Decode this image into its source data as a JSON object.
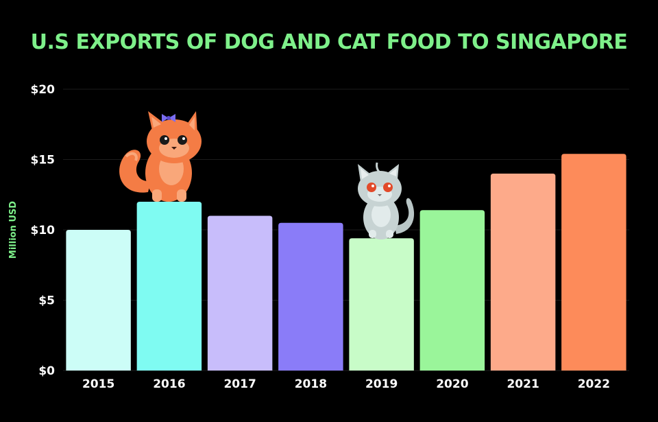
{
  "chart_data": {
    "type": "bar",
    "title": "U.S EXPORTS OF DOG AND CAT FOOD TO SINGAPORE",
    "ylabel": "Million USD",
    "xlabel": "",
    "categories": [
      "2015",
      "2016",
      "2017",
      "2018",
      "2019",
      "2020",
      "2021",
      "2022"
    ],
    "values": [
      10.0,
      12.0,
      11.0,
      10.5,
      9.4,
      11.4,
      14.0,
      15.4
    ],
    "ylim": [
      0,
      20
    ],
    "yticks": [
      0,
      5,
      10,
      15,
      20
    ],
    "ytick_labels": [
      "$0",
      "$5",
      "$10",
      "$15",
      "$20"
    ],
    "bar_colors": [
      "#ccfdf7",
      "#7ffbf2",
      "#c8bdfb",
      "#8a7cf8",
      "#c8fcc8",
      "#9af59a",
      "#fdaa8a",
      "#fd8b5a"
    ],
    "grid": true,
    "legend": "none"
  },
  "colors": {
    "background": "#000000",
    "title": "#7ef08a",
    "text": "#ffffff",
    "grid": "#1c1c1c"
  },
  "decorations": {
    "orange_cat": "orange-cat-illustration",
    "grey_cat": "grey-cat-illustration"
  }
}
